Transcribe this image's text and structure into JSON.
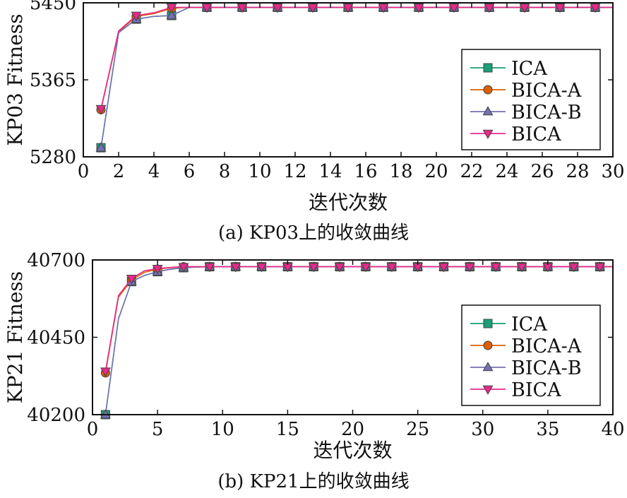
{
  "colors": {
    "ICA": "#1b9e77",
    "BICA-A": "#d95f02",
    "BICA-B": "#7570b3",
    "BICA": "#e7298a"
  },
  "chart_data": [
    {
      "type": "line",
      "caption": "(a) KP03上的收敛曲线",
      "xlabel": "迭代次数",
      "ylabel": "KP03 Fitness",
      "xlim": [
        0,
        30
      ],
      "ylim": [
        5280,
        5450
      ],
      "xticks": [
        0,
        2,
        4,
        6,
        8,
        10,
        12,
        14,
        16,
        18,
        20,
        22,
        24,
        26,
        28,
        30
      ],
      "yticks": [
        5280,
        5365,
        5450
      ],
      "legend": "right",
      "series": [
        {
          "name": "ICA",
          "marker": "square",
          "x": [
            1,
            2,
            3,
            4,
            5,
            6,
            7,
            8,
            9,
            10,
            11,
            12,
            13,
            14,
            15,
            16,
            17,
            18,
            19,
            20,
            21,
            22,
            23,
            24,
            25,
            26,
            27,
            28,
            29,
            30
          ],
          "y": [
            5290,
            5417,
            5432,
            5435,
            5436,
            5445,
            5445,
            5445,
            5445,
            5445,
            5445,
            5445,
            5445,
            5445,
            5445,
            5445,
            5445,
            5445,
            5445,
            5445,
            5445,
            5445,
            5445,
            5445,
            5445,
            5445,
            5445,
            5445,
            5445,
            5445
          ]
        },
        {
          "name": "BICA-A",
          "marker": "circle",
          "x": [
            1,
            2,
            3,
            4,
            5,
            6,
            7,
            8,
            9,
            10,
            11,
            12,
            13,
            14,
            15,
            16,
            17,
            18,
            19,
            20,
            21,
            22,
            23,
            24,
            25,
            26,
            27,
            28,
            29,
            30
          ],
          "y": [
            5332,
            5418,
            5435,
            5438,
            5444,
            5445,
            5445,
            5445,
            5445,
            5445,
            5445,
            5445,
            5445,
            5445,
            5445,
            5445,
            5445,
            5445,
            5445,
            5445,
            5445,
            5445,
            5445,
            5445,
            5445,
            5445,
            5445,
            5445,
            5445,
            5445
          ]
        },
        {
          "name": "BICA-B",
          "marker": "triangle-up",
          "x": [
            1,
            2,
            3,
            4,
            5,
            6,
            7,
            8,
            9,
            10,
            11,
            12,
            13,
            14,
            15,
            16,
            17,
            18,
            19,
            20,
            21,
            22,
            23,
            24,
            25,
            26,
            27,
            28,
            29,
            30
          ],
          "y": [
            5290,
            5417,
            5432,
            5435,
            5436,
            5445,
            5445,
            5445,
            5445,
            5445,
            5445,
            5445,
            5445,
            5445,
            5445,
            5445,
            5445,
            5445,
            5445,
            5445,
            5445,
            5445,
            5445,
            5445,
            5445,
            5445,
            5445,
            5445,
            5445,
            5445
          ]
        },
        {
          "name": "BICA",
          "marker": "triangle-down",
          "x": [
            1,
            2,
            3,
            4,
            5,
            6,
            7,
            8,
            9,
            10,
            11,
            12,
            13,
            14,
            15,
            16,
            17,
            18,
            19,
            20,
            21,
            22,
            23,
            24,
            25,
            26,
            27,
            28,
            29,
            30
          ],
          "y": [
            5333,
            5419,
            5436,
            5439,
            5445,
            5445,
            5445,
            5445,
            5445,
            5445,
            5445,
            5445,
            5445,
            5445,
            5445,
            5445,
            5445,
            5445,
            5445,
            5445,
            5445,
            5445,
            5445,
            5445,
            5445,
            5445,
            5445,
            5445,
            5445,
            5445
          ]
        }
      ]
    },
    {
      "type": "line",
      "caption": "(b) KP21上的收敛曲线",
      "xlabel": "迭代次数",
      "ylabel": "KP21 Fitness",
      "xlim": [
        0,
        40
      ],
      "ylim": [
        40200,
        40700
      ],
      "xticks": [
        0,
        5,
        10,
        15,
        20,
        25,
        30,
        35,
        40
      ],
      "yticks": [
        40200,
        40450,
        40700
      ],
      "legend": "right",
      "series": [
        {
          "name": "ICA",
          "marker": "square",
          "x": [
            1,
            2,
            3,
            4,
            5,
            6,
            7,
            8,
            9,
            10,
            11,
            12,
            13,
            14,
            15,
            16,
            17,
            18,
            19,
            20,
            21,
            22,
            23,
            24,
            25,
            26,
            27,
            28,
            29,
            30,
            31,
            32,
            33,
            34,
            35,
            36,
            37,
            38,
            39,
            40
          ],
          "y": [
            40200,
            40510,
            40630,
            40650,
            40662,
            40670,
            40675,
            40677,
            40678,
            40678,
            40678,
            40678,
            40678,
            40678,
            40678,
            40678,
            40678,
            40678,
            40678,
            40678,
            40678,
            40678,
            40678,
            40678,
            40678,
            40678,
            40678,
            40678,
            40678,
            40678,
            40678,
            40678,
            40678,
            40678,
            40678,
            40678,
            40678,
            40678,
            40678,
            40678
          ]
        },
        {
          "name": "BICA-A",
          "marker": "circle",
          "x": [
            1,
            2,
            3,
            4,
            5,
            6,
            7,
            8,
            9,
            10,
            11,
            12,
            13,
            14,
            15,
            16,
            17,
            18,
            19,
            20,
            21,
            22,
            23,
            24,
            25,
            26,
            27,
            28,
            29,
            30,
            31,
            32,
            33,
            34,
            35,
            36,
            37,
            38,
            39,
            40
          ],
          "y": [
            40335,
            40580,
            40635,
            40660,
            40670,
            40675,
            40678,
            40678,
            40678,
            40678,
            40678,
            40678,
            40678,
            40678,
            40678,
            40678,
            40678,
            40678,
            40678,
            40678,
            40678,
            40678,
            40678,
            40678,
            40678,
            40678,
            40678,
            40678,
            40678,
            40678,
            40678,
            40678,
            40678,
            40678,
            40678,
            40678,
            40678,
            40678,
            40678,
            40678
          ]
        },
        {
          "name": "BICA-B",
          "marker": "triangle-up",
          "x": [
            1,
            2,
            3,
            4,
            5,
            6,
            7,
            8,
            9,
            10,
            11,
            12,
            13,
            14,
            15,
            16,
            17,
            18,
            19,
            20,
            21,
            22,
            23,
            24,
            25,
            26,
            27,
            28,
            29,
            30,
            31,
            32,
            33,
            34,
            35,
            36,
            37,
            38,
            39,
            40
          ],
          "y": [
            40200,
            40510,
            40630,
            40650,
            40662,
            40670,
            40675,
            40677,
            40678,
            40678,
            40678,
            40678,
            40678,
            40678,
            40678,
            40678,
            40678,
            40678,
            40678,
            40678,
            40678,
            40678,
            40678,
            40678,
            40678,
            40678,
            40678,
            40678,
            40678,
            40678,
            40678,
            40678,
            40678,
            40678,
            40678,
            40678,
            40678,
            40678,
            40678,
            40678
          ]
        },
        {
          "name": "BICA",
          "marker": "triangle-down",
          "x": [
            1,
            2,
            3,
            4,
            5,
            6,
            7,
            8,
            9,
            10,
            11,
            12,
            13,
            14,
            15,
            16,
            17,
            18,
            19,
            20,
            21,
            22,
            23,
            24,
            25,
            26,
            27,
            28,
            29,
            30,
            31,
            32,
            33,
            34,
            35,
            36,
            37,
            38,
            39,
            40
          ],
          "y": [
            40340,
            40585,
            40640,
            40665,
            40672,
            40676,
            40678,
            40678,
            40678,
            40678,
            40678,
            40678,
            40678,
            40678,
            40678,
            40678,
            40678,
            40678,
            40678,
            40678,
            40678,
            40678,
            40678,
            40678,
            40678,
            40678,
            40678,
            40678,
            40678,
            40678,
            40678,
            40678,
            40678,
            40678,
            40678,
            40678,
            40678,
            40678,
            40678,
            40678
          ]
        }
      ]
    }
  ]
}
